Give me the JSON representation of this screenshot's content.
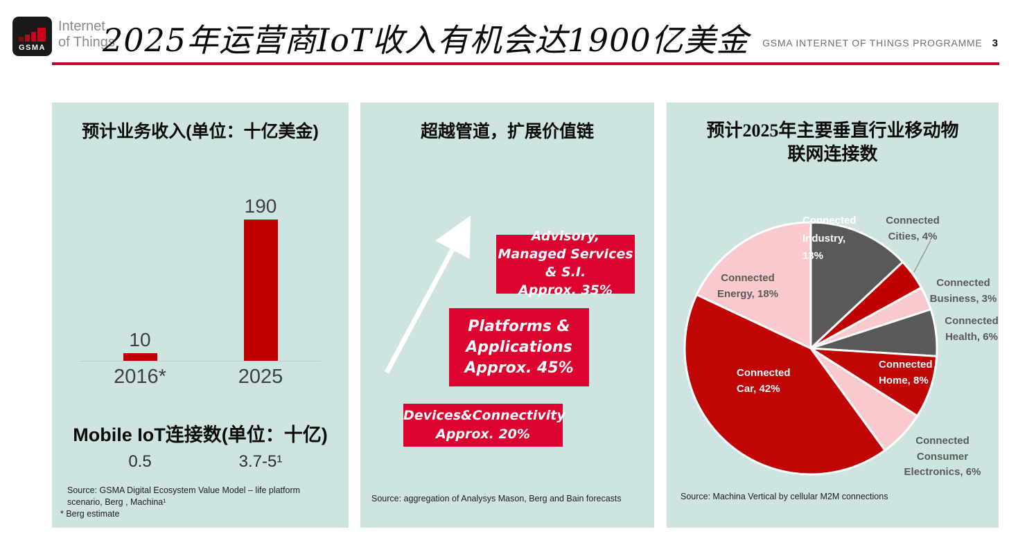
{
  "header": {
    "logo_label": "GSMA",
    "logo_sub_line1": "Internet",
    "logo_sub_line2": "of Things",
    "title": "2025年运营商IoT收入有机会达1900亿美金",
    "programme_label": "GSMA INTERNET OF THINGS PROGRAMME",
    "page_number": "3"
  },
  "colors": {
    "accent_red": "#c40024",
    "bar_red": "#c00000",
    "box_red": "#dd0330",
    "panel_bg": "#cee4e1",
    "pie_dark_gray": "#595959",
    "pie_dark_red": "#c00505",
    "pie_pink": "#f8c9cd"
  },
  "left_panel": {
    "title": "预计业务收入(单位：十亿美金)",
    "mobile_heading": "Mobile IoT连接数(单位：十亿)",
    "connection_values": [
      "0.5",
      "3.7-5¹"
    ],
    "source_line": "Source: GSMA Digital Ecosystem Value Model – life platform scenario, Berg , Machina¹",
    "berg_note": "* Berg estimate"
  },
  "middle_panel": {
    "title": "超越管道，扩展价值链",
    "boxes": [
      {
        "lines": [
          "Advisory,",
          "Managed Services",
          "& S.I.",
          "Approx. 35%"
        ]
      },
      {
        "lines": [
          "Platforms &",
          "Applications",
          "Approx. 45%"
        ]
      },
      {
        "lines": [
          "Devices&Connectivity",
          "Approx. 20%"
        ]
      }
    ],
    "source": "Source: aggregation of Analysys Mason, Berg and Bain forecasts"
  },
  "right_panel": {
    "title_line1": "预计2025年主要垂直行业移动物",
    "title_line2": "联网连接数",
    "pie_labels": {
      "industry": {
        "lines": [
          "Connected",
          "Industry,",
          "13%"
        ]
      },
      "cities": {
        "lines": [
          "Connected",
          "Cities, 4%"
        ]
      },
      "business": {
        "lines": [
          "Connected",
          "Business, 3%"
        ]
      },
      "health": {
        "lines": [
          "Connected",
          "Health, 6%"
        ]
      },
      "home": {
        "lines": [
          "Connected",
          "Home, 8%"
        ]
      },
      "consumer": {
        "lines": [
          "Connected",
          "Consumer",
          "Electronics, 6%"
        ]
      },
      "car": {
        "lines": [
          "Connected",
          "Car, 42%"
        ]
      },
      "energy": {
        "lines": [
          "Connected",
          "Energy, 18%"
        ]
      }
    },
    "source": "Source: Machina Vertical by cellular M2M connections"
  },
  "chart_data": [
    {
      "type": "bar",
      "title": "预计业务收入(单位：十亿美金)",
      "categories": [
        "2016*",
        "2025"
      ],
      "values": [
        10,
        190
      ],
      "value_labels": [
        "10",
        "190"
      ],
      "ylabel": "十亿美金",
      "ylim": [
        0,
        190
      ],
      "bar_color": "#c00000"
    },
    {
      "type": "pie",
      "title": "预计2025年主要垂直行业移动物联网连接数",
      "start_angle_deg": 0,
      "direction": "clockwise",
      "slices": [
        {
          "label": "Connected Industry",
          "value": 13,
          "color": "#595959"
        },
        {
          "label": "Connected Cities",
          "value": 4,
          "color": "#c00000"
        },
        {
          "label": "Connected Business",
          "value": 3,
          "color": "#f8c9cd"
        },
        {
          "label": "Connected Health",
          "value": 6,
          "color": "#595959"
        },
        {
          "label": "Connected Home",
          "value": 8,
          "color": "#c00505"
        },
        {
          "label": "Connected Consumer Electronics",
          "value": 6,
          "color": "#f8c9cd"
        },
        {
          "label": "Connected Car",
          "value": 42,
          "color": "#c00505"
        },
        {
          "label": "Connected Energy",
          "value": 18,
          "color": "#f8c9cd"
        }
      ]
    }
  ]
}
